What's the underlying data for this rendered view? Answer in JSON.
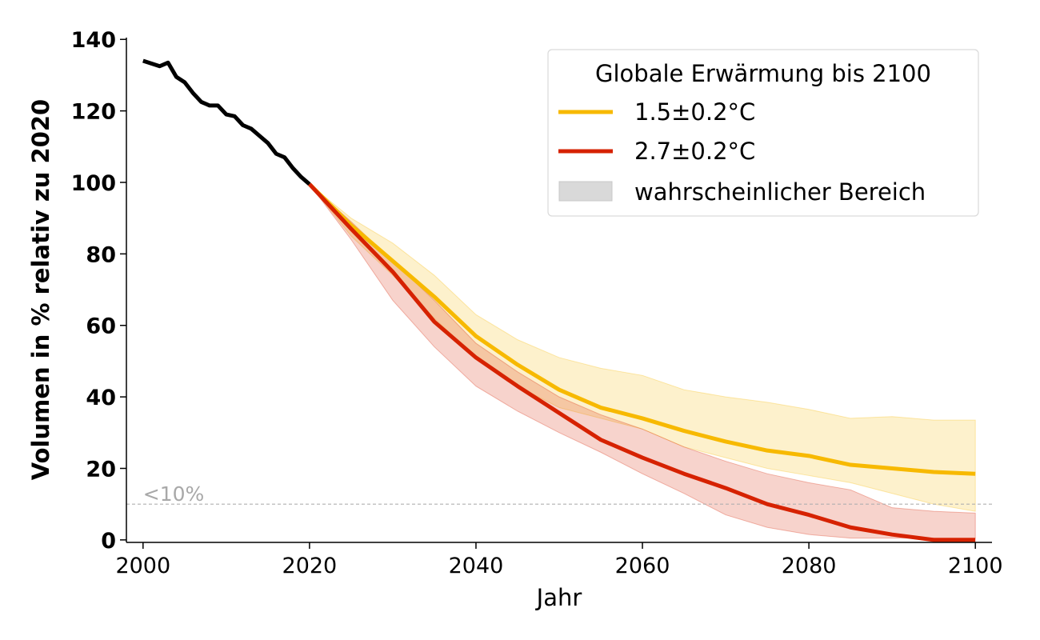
{
  "chart_data": {
    "type": "line",
    "title": "",
    "xlabel": "Jahr",
    "ylabel": "Volumen in % relativ zu 2020",
    "xlim": [
      1998,
      2102
    ],
    "ylim": [
      -0.7,
      140.5
    ],
    "xticks": [
      2000,
      2020,
      2040,
      2060,
      2080,
      2100
    ],
    "yticks": [
      0,
      20,
      40,
      60,
      80,
      100,
      120,
      140
    ],
    "grid": false,
    "legend": {
      "title": "Globale Erwärmung bis 2100",
      "placement": "top-right",
      "entries": [
        "1.5±0.2°C",
        "2.7±0.2°C",
        "wahrscheinlicher Bereich"
      ]
    },
    "threshold": {
      "value": 10,
      "label": "<10%",
      "color": "#b0b0b0"
    },
    "historical": {
      "color": "#000000",
      "x": [
        2000,
        2002,
        2003,
        2004,
        2005,
        2006,
        2007,
        2008,
        2009,
        2010,
        2011,
        2012,
        2013,
        2014,
        2015,
        2016,
        2017,
        2018,
        2019,
        2020
      ],
      "y": [
        134,
        132.5,
        133.5,
        129.5,
        128,
        125,
        122.5,
        121.5,
        121.5,
        119,
        118.5,
        116,
        115,
        113,
        111,
        108,
        107,
        104,
        101.5,
        99.5
      ]
    },
    "series": [
      {
        "name": "1.5±0.2°C",
        "color": "#f7b900",
        "x": [
          2020,
          2025,
          2030,
          2035,
          2040,
          2045,
          2050,
          2055,
          2060,
          2065,
          2070,
          2075,
          2080,
          2085,
          2090,
          2095,
          2100
        ],
        "y": [
          99.5,
          88,
          78,
          68,
          57,
          49,
          42,
          37,
          34,
          30.5,
          27.5,
          25,
          23.5,
          21,
          20,
          19,
          18.5
        ],
        "upper": [
          99.5,
          90,
          83,
          74,
          63,
          56,
          51,
          48,
          46,
          42,
          40,
          38.5,
          36.5,
          34,
          34.5,
          33.5,
          33.5
        ],
        "lower": [
          99.5,
          85,
          74,
          62,
          51,
          43,
          37,
          34,
          31,
          26,
          23,
          20,
          18,
          16,
          13,
          10,
          8
        ]
      },
      {
        "name": "2.7±0.2°C",
        "color": "#d62200",
        "x": [
          2020,
          2025,
          2030,
          2035,
          2040,
          2045,
          2050,
          2055,
          2060,
          2065,
          2070,
          2075,
          2080,
          2085,
          2090,
          2095,
          2100
        ],
        "y": [
          99.5,
          87,
          75,
          61,
          51,
          43,
          35.5,
          28,
          23,
          18.5,
          14.5,
          10,
          7,
          3.5,
          1.5,
          0,
          0
        ],
        "upper": [
          99.5,
          89,
          78,
          67,
          55,
          47,
          40,
          35,
          31,
          26,
          22,
          18.5,
          16,
          14,
          9,
          8,
          7.5
        ],
        "lower": [
          99.5,
          84,
          67,
          54,
          43,
          36,
          30,
          24.5,
          18.5,
          13,
          7,
          3.5,
          1.5,
          0.5,
          0.5,
          0.5,
          0.5
        ]
      }
    ]
  }
}
